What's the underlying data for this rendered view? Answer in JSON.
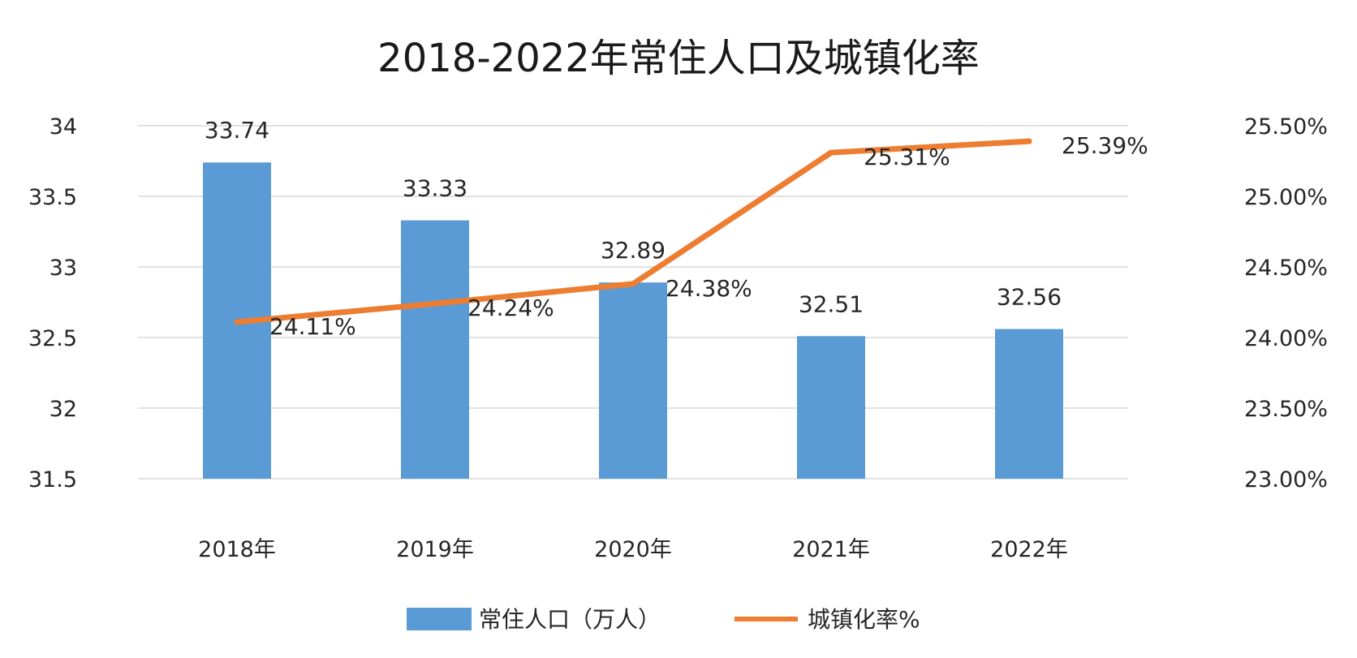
{
  "chart_data": {
    "type": "bar",
    "title": "2018-2022年常住人口及城镇化率",
    "categories": [
      "2018年",
      "2019年",
      "2020年",
      "2021年",
      "2022年"
    ],
    "y_left": {
      "range": [
        31.5,
        34
      ],
      "ticks": [
        {
          "value": 31.5,
          "label": "31.5"
        },
        {
          "value": 32,
          "label": "32"
        },
        {
          "value": 32.5,
          "label": "32.5"
        },
        {
          "value": 33,
          "label": "33"
        },
        {
          "value": 33.5,
          "label": "33.5"
        },
        {
          "value": 34,
          "label": "34"
        }
      ]
    },
    "y_right": {
      "range": [
        23.0,
        25.5
      ],
      "ticks": [
        {
          "value": 23.0,
          "label": "23.00%"
        },
        {
          "value": 23.5,
          "label": "23.50%"
        },
        {
          "value": 24.0,
          "label": "24.00%"
        },
        {
          "value": 24.5,
          "label": "24.50%"
        },
        {
          "value": 25.0,
          "label": "25.00%"
        },
        {
          "value": 25.5,
          "label": "25.50%"
        }
      ]
    },
    "series": [
      {
        "name": "常住人口（万人）",
        "type": "bar",
        "axis": "left",
        "color": "#5b9bd5",
        "values": [
          33.74,
          33.33,
          32.89,
          32.51,
          32.56
        ],
        "labels": [
          "33.74",
          "33.33",
          "32.89",
          "32.51",
          "32.56"
        ]
      },
      {
        "name": "城镇化率%",
        "type": "line",
        "axis": "right",
        "color": "#ed7d31",
        "values": [
          24.11,
          24.24,
          24.38,
          25.31,
          25.39
        ],
        "labels": [
          "24.11%",
          "24.24%",
          "24.38%",
          "25.31%",
          "25.39%"
        ]
      }
    ],
    "grid": true,
    "legend_position": "bottom"
  }
}
